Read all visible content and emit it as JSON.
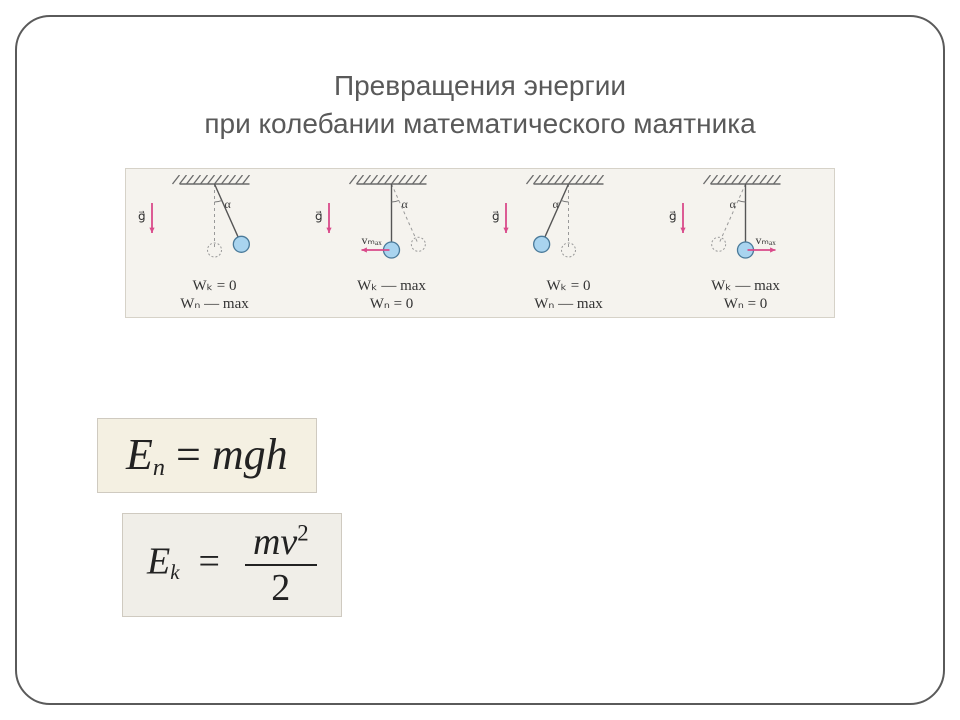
{
  "title_line1": "Превращения энергии",
  "title_line2": "при колебании математического маятника",
  "diagram": {
    "background_color": "#f5f3ee",
    "border_color": "#d6d2c8",
    "hatch_color": "#6a6a6a",
    "bob_fill": "#a9d4ef",
    "bob_stroke": "#4a7a9a",
    "dashed_color": "#999999",
    "string_color": "#555555",
    "g_color": "#d94a8a",
    "v_color": "#d94a8a",
    "angle_label": "α",
    "g_label": "g⃗",
    "v_label": "vₘₐₓ",
    "panels": [
      {
        "swing": "right",
        "solid_at": "right",
        "v": "none",
        "wk": "Wₖ = 0",
        "wp": "Wₙ — max"
      },
      {
        "swing": "right",
        "solid_at": "center",
        "v": "left",
        "wk": "Wₖ — max",
        "wp": "Wₙ = 0"
      },
      {
        "swing": "left",
        "solid_at": "left",
        "v": "none",
        "wk": "Wₖ = 0",
        "wp": "Wₙ — max"
      },
      {
        "swing": "left",
        "solid_at": "center",
        "v": "right",
        "wk": "Wₖ — max",
        "wp": "Wₙ = 0"
      }
    ]
  },
  "formulas": {
    "potential": {
      "lhs_sym": "E",
      "lhs_sub": "n",
      "rhs": "mgh",
      "bg": "#f4f0e2",
      "fontsize": 44
    },
    "kinetic": {
      "lhs_sym": "E",
      "lhs_sub": "k",
      "num_m": "m",
      "num_v": "v",
      "num_exp": "2",
      "den": "2",
      "bg": "#f0eee8",
      "fontsize": 38
    }
  },
  "colors": {
    "frame_border": "#5a5a5a",
    "title_color": "#595959",
    "text_color": "#333333"
  }
}
